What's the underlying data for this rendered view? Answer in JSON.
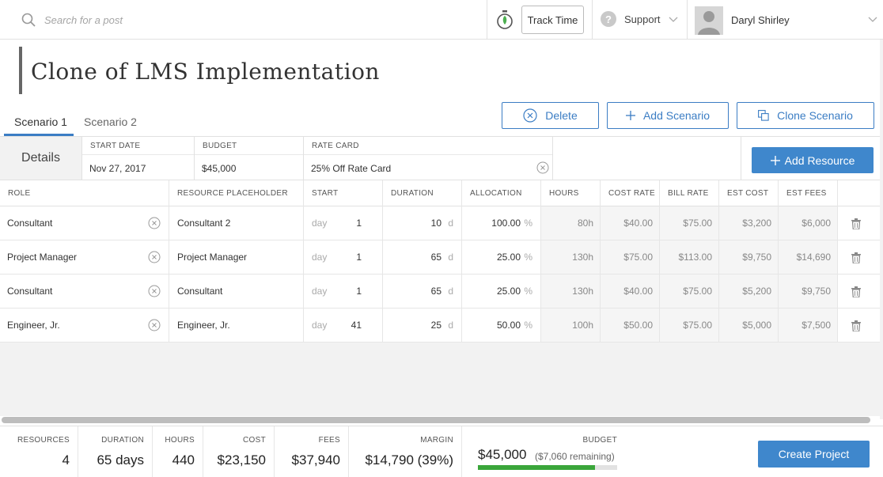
{
  "topbar": {
    "search_placeholder": "Search for a post",
    "track_time_label": "Track Time",
    "support_label": "Support",
    "user_name": "Daryl Shirley"
  },
  "page": {
    "title": "Clone of LMS Implementation"
  },
  "tabs": [
    {
      "label": "Scenario 1",
      "active": true
    },
    {
      "label": "Scenario 2",
      "active": false
    }
  ],
  "actions": {
    "delete_label": "Delete",
    "add_scenario_label": "Add Scenario",
    "clone_scenario_label": "Clone Scenario",
    "add_resource_label": "Add Resource",
    "create_project_label": "Create Project"
  },
  "details": {
    "label": "Details",
    "start_date_label": "START DATE",
    "start_date": "Nov 27, 2017",
    "budget_label": "BUDGET",
    "budget": "$45,000",
    "rate_card_label": "RATE CARD",
    "rate_card": "25% Off Rate Card"
  },
  "table": {
    "headers": [
      "ROLE",
      "RESOURCE PLACEHOLDER",
      "START",
      "DURATION",
      "ALLOCATION",
      "HOURS",
      "COST RATE",
      "BILL RATE",
      "EST COST",
      "EST FEES"
    ],
    "rows": [
      {
        "role": "Consultant",
        "placeholder": "Consultant 2",
        "start_unit": "day",
        "start": "1",
        "duration": "10",
        "duration_unit": "d",
        "allocation": "100.00",
        "alloc_unit": "%",
        "hours": "80h",
        "cost_rate": "$40.00",
        "bill_rate": "$75.00",
        "est_cost": "$3,200",
        "est_fees": "$6,000"
      },
      {
        "role": "Project Manager",
        "placeholder": "Project Manager",
        "start_unit": "day",
        "start": "1",
        "duration": "65",
        "duration_unit": "d",
        "allocation": "25.00",
        "alloc_unit": "%",
        "hours": "130h",
        "cost_rate": "$75.00",
        "bill_rate": "$113.00",
        "est_cost": "$9,750",
        "est_fees": "$14,690"
      },
      {
        "role": "Consultant",
        "placeholder": "Consultant",
        "start_unit": "day",
        "start": "1",
        "duration": "65",
        "duration_unit": "d",
        "allocation": "25.00",
        "alloc_unit": "%",
        "hours": "130h",
        "cost_rate": "$40.00",
        "bill_rate": "$75.00",
        "est_cost": "$5,200",
        "est_fees": "$9,750"
      },
      {
        "role": "Engineer, Jr.",
        "placeholder": "Engineer, Jr.",
        "start_unit": "day",
        "start": "41",
        "duration": "25",
        "duration_unit": "d",
        "allocation": "50.00",
        "alloc_unit": "%",
        "hours": "100h",
        "cost_rate": "$50.00",
        "bill_rate": "$75.00",
        "est_cost": "$5,000",
        "est_fees": "$7,500"
      }
    ]
  },
  "footer": {
    "resources_label": "RESOURCES",
    "resources": "4",
    "duration_label": "DURATION",
    "duration": "65 days",
    "hours_label": "HOURS",
    "hours": "440",
    "cost_label": "COST",
    "cost": "$23,150",
    "fees_label": "FEES",
    "fees": "$37,940",
    "margin_label": "MARGIN",
    "margin": "$14,790 (39%)",
    "budget_label": "BUDGET",
    "budget": "$45,000",
    "budget_remaining": "($7,060 remaining)",
    "budget_used_fraction": 0.843
  },
  "colors": {
    "accent": "#3f87cc",
    "budget_bar": "#3aa63a"
  }
}
